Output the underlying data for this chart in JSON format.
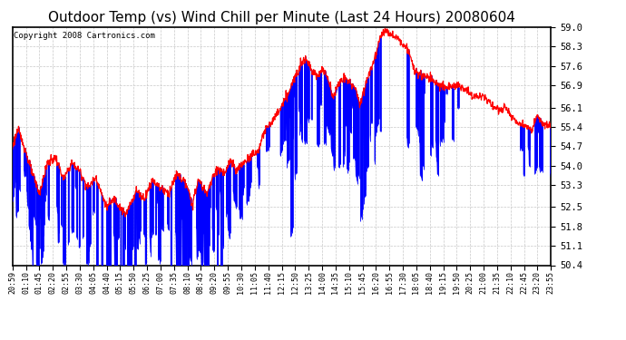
{
  "title": "Outdoor Temp (vs) Wind Chill per Minute (Last 24 Hours) 20080604",
  "copyright": "Copyright 2008 Cartronics.com",
  "ylim": [
    50.4,
    59.0
  ],
  "yticks": [
    50.4,
    51.1,
    51.8,
    52.5,
    53.3,
    54.0,
    54.7,
    55.4,
    56.1,
    56.9,
    57.6,
    58.3,
    59.0
  ],
  "bg_color": "#ffffff",
  "grid_color": "#c8c8c8",
  "line_color": "#ff0000",
  "bar_color": "#0000ff",
  "title_fontsize": 11,
  "copyright_fontsize": 6.5,
  "x_labels": [
    "20:59",
    "01:10",
    "01:45",
    "02:20",
    "02:55",
    "03:30",
    "04:05",
    "04:40",
    "05:15",
    "05:50",
    "06:25",
    "07:00",
    "07:35",
    "08:10",
    "08:45",
    "09:20",
    "09:55",
    "10:30",
    "11:05",
    "11:40",
    "12:15",
    "12:50",
    "13:25",
    "14:00",
    "14:35",
    "15:10",
    "15:45",
    "16:20",
    "16:55",
    "17:30",
    "18:05",
    "18:40",
    "19:15",
    "19:50",
    "20:25",
    "21:00",
    "21:35",
    "22:10",
    "22:45",
    "23:20",
    "23:55"
  ]
}
